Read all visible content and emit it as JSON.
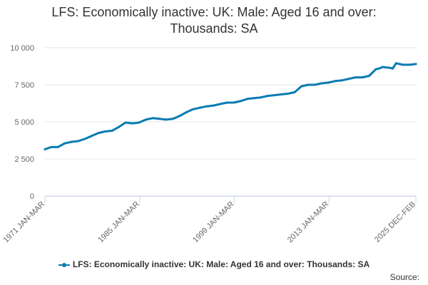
{
  "title_line1": "LFS: Economically inactive: UK: Male: Aged 16 and over:",
  "title_line2": "Thousands: SA",
  "legend_label": "LFS: Economically inactive: UK: Male: Aged 16 and over: Thousands: SA",
  "source_label": "Source:",
  "colors": {
    "series": "#0a7bb2",
    "grid": "#e6e6e6",
    "axis": "#ccd6eb"
  },
  "chart_data": {
    "type": "line",
    "title": "LFS: Economically inactive: UK: Male: Aged 16 and over: Thousands: SA",
    "xlabel": "",
    "ylabel": "",
    "ylim": [
      0,
      10000
    ],
    "yticks": [
      0,
      2500,
      5000,
      7500,
      10000
    ],
    "ytick_labels": [
      "0",
      "2 500",
      "5 000",
      "7 500",
      "10 000"
    ],
    "xlim": [
      1971.08,
      2025.92
    ],
    "xticks": [
      1971.08,
      1985.08,
      1999.08,
      2013.08,
      2025.92
    ],
    "xtick_labels": [
      "1971 JAN-MAR",
      "1985 JAN-MAR",
      "1999 JAN-MAR",
      "2013 JAN-MAR",
      "2025 DEC-FEB"
    ],
    "grid": true,
    "legend": "bottom",
    "series": [
      {
        "name": "LFS: Economically inactive: UK: Male: Aged 16 and over: Thousands: SA",
        "x": [
          1971.08,
          1972,
          1973,
          1974,
          1975,
          1976,
          1977,
          1978,
          1979,
          1980,
          1981,
          1982,
          1983,
          1984,
          1985,
          1986,
          1987,
          1988,
          1989,
          1990,
          1991,
          1992,
          1993,
          1994,
          1995,
          1996,
          1997,
          1998,
          1999,
          2000,
          2001,
          2002,
          2003,
          2004,
          2005,
          2006,
          2007,
          2008,
          2009,
          2010,
          2011,
          2012,
          2013,
          2014,
          2015,
          2016,
          2017,
          2018,
          2019,
          2020,
          2020.5,
          2021,
          2022,
          2022.5,
          2023,
          2024,
          2025,
          2025.92
        ],
        "values": [
          3150,
          3300,
          3300,
          3550,
          3650,
          3700,
          3850,
          4050,
          4250,
          4350,
          4400,
          4650,
          4950,
          4900,
          4950,
          5150,
          5250,
          5200,
          5150,
          5200,
          5400,
          5650,
          5850,
          5950,
          6050,
          6100,
          6200,
          6300,
          6300,
          6400,
          6550,
          6600,
          6650,
          6750,
          6800,
          6850,
          6900,
          7000,
          7400,
          7500,
          7500,
          7600,
          7650,
          7750,
          7800,
          7900,
          8000,
          8000,
          8100,
          8550,
          8600,
          8700,
          8650,
          8600,
          8950,
          8850,
          8850,
          8900
        ]
      }
    ]
  }
}
